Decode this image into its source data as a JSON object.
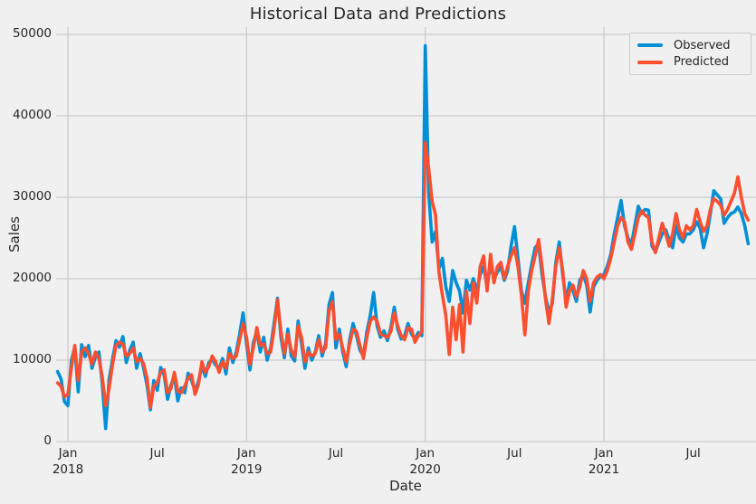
{
  "colors": {
    "background": "#f0f0f0",
    "grid": "#cbcbcb",
    "text": "#262626",
    "observed": "#008fd5",
    "predicted": "#fc4f30"
  },
  "chart_data": {
    "type": "line",
    "title": "Historical Data and Predictions",
    "xlabel": "Date",
    "ylabel": "Sales",
    "ylim": [
      0,
      50000
    ],
    "yticks": [
      0,
      10000,
      20000,
      30000,
      40000,
      50000
    ],
    "grid": true,
    "legend_position": "upper right",
    "x_unit": "weeks",
    "x_start_date": "2017-12-11",
    "x_ticks": [
      {
        "week": 3,
        "label": "Jan",
        "year": "2018"
      },
      {
        "week": 29,
        "label": "Jul",
        "year": ""
      },
      {
        "week": 55,
        "label": "Jan",
        "year": "2019"
      },
      {
        "week": 81,
        "label": "Jul",
        "year": ""
      },
      {
        "week": 107,
        "label": "Jan",
        "year": "2020"
      },
      {
        "week": 133,
        "label": "Jul",
        "year": ""
      },
      {
        "week": 159,
        "label": "Jan",
        "year": "2021"
      },
      {
        "week": 185,
        "label": "Jul",
        "year": ""
      }
    ],
    "x_gridline_weeks": [
      3,
      55,
      107,
      159
    ],
    "series": [
      {
        "name": "Observed",
        "color": "#008fd5",
        "values": [
          8600,
          7700,
          4900,
          4400,
          9900,
          11600,
          6100,
          11900,
          10400,
          11800,
          9000,
          10400,
          11000,
          7200,
          1600,
          7600,
          10100,
          12400,
          11600,
          12900,
          9700,
          11200,
          12200,
          9000,
          10800,
          9100,
          7000,
          3900,
          7500,
          6300,
          9100,
          8200,
          5200,
          6900,
          8100,
          5000,
          6600,
          6000,
          8400,
          7500,
          6200,
          7400,
          9300,
          8000,
          9700,
          10100,
          9400,
          8900,
          10200,
          8300,
          11500,
          9700,
          11000,
          13200,
          15800,
          12000,
          8800,
          12200,
          13500,
          11000,
          12800,
          10000,
          11500,
          14500,
          17600,
          12800,
          10300,
          13800,
          10500,
          9900,
          14800,
          12000,
          9000,
          11500,
          10000,
          11000,
          13000,
          10500,
          12000,
          16800,
          18300,
          11500,
          13800,
          11000,
          9200,
          12500,
          14500,
          13000,
          11200,
          10500,
          13500,
          15500,
          18300,
          14200,
          12800,
          13600,
          12400,
          14000,
          16500,
          13800,
          12600,
          13000,
          14500,
          13200,
          12600,
          13400,
          13000,
          48600,
          30500,
          24500,
          25800,
          21200,
          22500,
          19000,
          17200,
          21000,
          19500,
          18500,
          15800,
          19800,
          18600,
          20000,
          18500,
          20500,
          21500,
          19000,
          21800,
          20000,
          20800,
          21500,
          19800,
          21000,
          24000,
          26400,
          22500,
          18500,
          17000,
          19500,
          21800,
          23800,
          24300,
          20500,
          17800,
          15800,
          17000,
          22000,
          24500,
          20500,
          17200,
          19500,
          18500,
          17200,
          19800,
          20500,
          19200,
          15900,
          19000,
          19800,
          20300,
          20500,
          21500,
          23000,
          25500,
          27500,
          29600,
          26500,
          25000,
          24200,
          26500,
          28900,
          28000,
          28500,
          28400,
          24000,
          23300,
          24500,
          25500,
          26000,
          24800,
          23800,
          26500,
          25000,
          24500,
          25500,
          25500,
          26000,
          27000,
          26200,
          23800,
          25500,
          28000,
          30800,
          30300,
          29800,
          26800,
          27500,
          28000,
          28200,
          28800,
          28000,
          26500,
          24300
        ]
      },
      {
        "name": "Predicted",
        "color": "#fc4f30",
        "values": [
          7200,
          6800,
          5500,
          5800,
          9000,
          11800,
          7500,
          11000,
          11500,
          10800,
          9500,
          11000,
          10200,
          8000,
          4400,
          6500,
          9500,
          11800,
          12200,
          12000,
          10500,
          10800,
          11500,
          9800,
          10200,
          9600,
          7800,
          4200,
          6800,
          7200,
          8500,
          8800,
          6000,
          6500,
          8500,
          6200,
          6000,
          6800,
          7800,
          8200,
          5800,
          7000,
          9800,
          8500,
          9200,
          10500,
          9800,
          8500,
          9800,
          9000,
          10800,
          10200,
          10500,
          12500,
          14500,
          12800,
          9500,
          11500,
          14000,
          11800,
          12000,
          10800,
          11000,
          13800,
          17400,
          13500,
          10800,
          13200,
          11200,
          10400,
          14200,
          12800,
          9800,
          11000,
          10500,
          10800,
          12500,
          11000,
          11500,
          16000,
          17200,
          12500,
          13200,
          11500,
          9800,
          12000,
          13800,
          13500,
          11800,
          10200,
          12800,
          14800,
          15300,
          14800,
          13200,
          13000,
          12800,
          13500,
          15800,
          14200,
          13000,
          12500,
          14000,
          13800,
          12200,
          13000,
          13500,
          36700,
          33500,
          29500,
          27800,
          20800,
          18000,
          15500,
          10700,
          16500,
          12500,
          16800,
          11000,
          18500,
          14500,
          19500,
          17000,
          21500,
          22800,
          18500,
          23000,
          19500,
          21500,
          22000,
          20000,
          21500,
          22800,
          23800,
          21500,
          18000,
          13100,
          18500,
          21000,
          22800,
          24800,
          21500,
          17500,
          14500,
          17500,
          21500,
          23800,
          21000,
          16500,
          18500,
          19200,
          17800,
          19000,
          21000,
          20000,
          17200,
          19500,
          20200,
          20500,
          20000,
          21000,
          22500,
          24500,
          26500,
          27500,
          27000,
          24500,
          23600,
          25500,
          27500,
          28300,
          27800,
          27500,
          24500,
          23200,
          25000,
          26800,
          25500,
          24000,
          25500,
          28000,
          26000,
          25000,
          26500,
          26000,
          26500,
          28500,
          27000,
          25800,
          26500,
          28500,
          29800,
          29500,
          29000,
          27800,
          28500,
          29500,
          30500,
          32500,
          30000,
          28000,
          27200
        ]
      }
    ]
  }
}
